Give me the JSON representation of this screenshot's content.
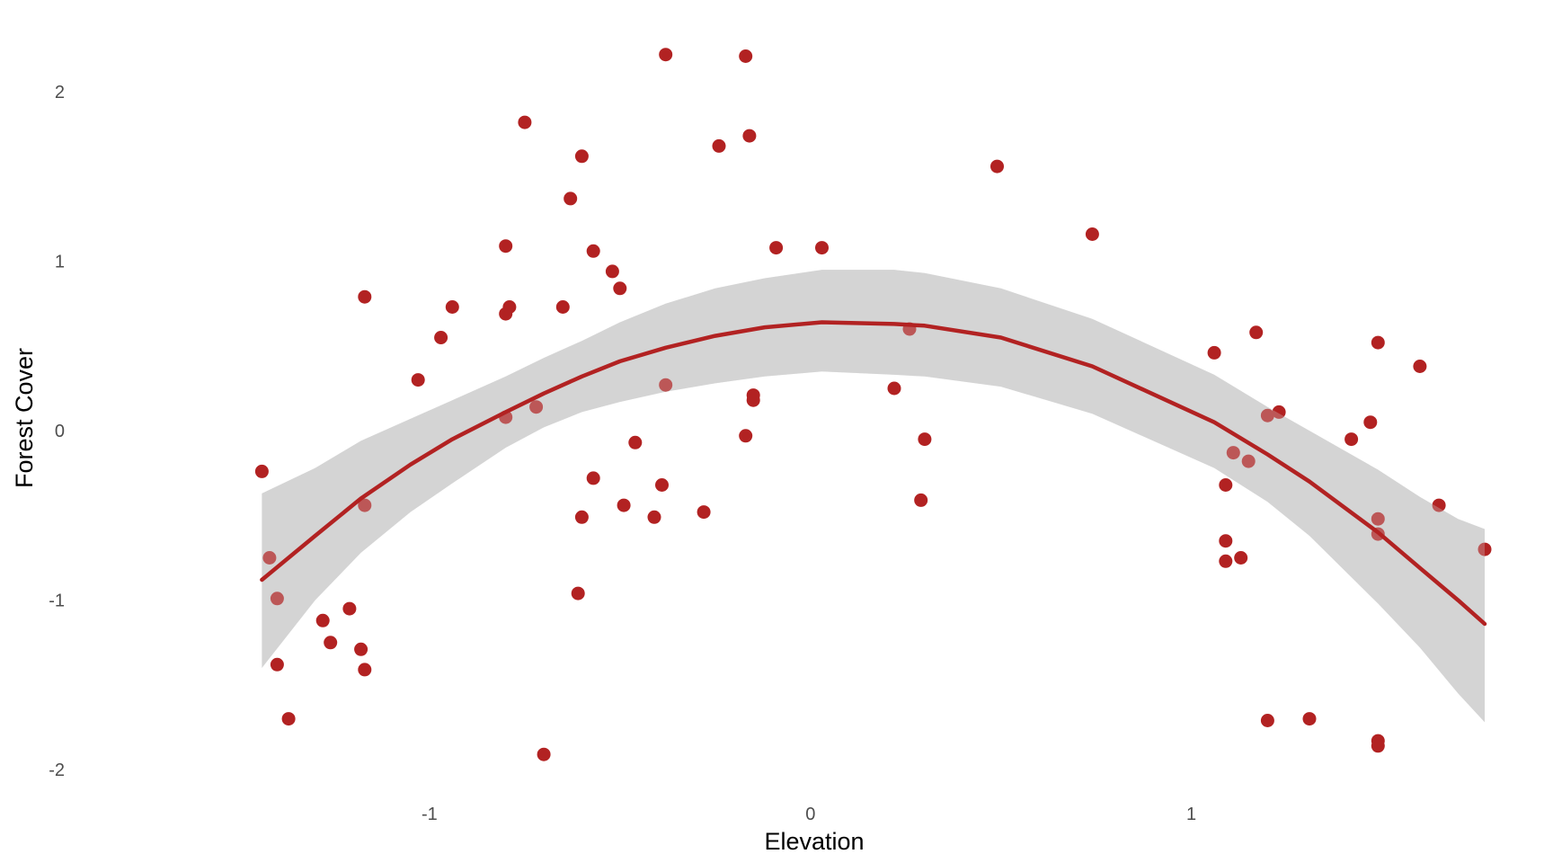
{
  "chart_data": {
    "type": "scatter",
    "title": "",
    "xlabel": "Elevation",
    "ylabel": "Forest Cover",
    "xlim": [
      -1.75,
      1.77
    ],
    "ylim": [
      -2.1,
      2.25
    ],
    "x_ticks": [
      -1,
      0,
      1
    ],
    "x_tick_labels": [
      "-1",
      "0",
      "1"
    ],
    "y_ticks": [
      -2,
      -1,
      0,
      1,
      2
    ],
    "y_tick_labels": [
      "-2",
      "-1",
      "0",
      "1",
      "2"
    ],
    "grid": false,
    "colors": {
      "points": "#b22222",
      "fit_line": "#b22222",
      "ribbon": "#d3d3d3",
      "text": "#4d4d4d"
    },
    "points": [
      {
        "x": -1.44,
        "y": -0.24
      },
      {
        "x": -1.42,
        "y": -0.75
      },
      {
        "x": -1.4,
        "y": -0.99
      },
      {
        "x": -1.4,
        "y": -1.38
      },
      {
        "x": -1.37,
        "y": -1.7
      },
      {
        "x": -1.28,
        "y": -1.12
      },
      {
        "x": -1.26,
        "y": -1.25
      },
      {
        "x": -1.21,
        "y": -1.05
      },
      {
        "x": -1.18,
        "y": -1.29
      },
      {
        "x": -1.17,
        "y": -1.41
      },
      {
        "x": -1.17,
        "y": -0.44
      },
      {
        "x": -1.17,
        "y": 0.79
      },
      {
        "x": -1.03,
        "y": 0.3
      },
      {
        "x": -0.97,
        "y": 0.55
      },
      {
        "x": -0.94,
        "y": 0.73
      },
      {
        "x": -0.8,
        "y": 1.09
      },
      {
        "x": -0.8,
        "y": 0.69
      },
      {
        "x": -0.79,
        "y": 0.73
      },
      {
        "x": -0.8,
        "y": 0.08
      },
      {
        "x": -0.75,
        "y": 1.82
      },
      {
        "x": -0.72,
        "y": 0.14
      },
      {
        "x": -0.7,
        "y": -1.91
      },
      {
        "x": -0.65,
        "y": 0.73
      },
      {
        "x": -0.63,
        "y": 1.37
      },
      {
        "x": -0.61,
        "y": -0.96
      },
      {
        "x": -0.6,
        "y": 1.62
      },
      {
        "x": -0.6,
        "y": -0.51
      },
      {
        "x": -0.57,
        "y": 1.06
      },
      {
        "x": -0.57,
        "y": -0.28
      },
      {
        "x": -0.52,
        "y": 0.94
      },
      {
        "x": -0.5,
        "y": 0.84
      },
      {
        "x": -0.49,
        "y": -0.44
      },
      {
        "x": -0.46,
        "y": -0.07
      },
      {
        "x": -0.41,
        "y": -0.51
      },
      {
        "x": -0.39,
        "y": -0.32
      },
      {
        "x": -0.38,
        "y": 2.22
      },
      {
        "x": -0.38,
        "y": 0.27
      },
      {
        "x": -0.28,
        "y": -0.48
      },
      {
        "x": -0.24,
        "y": 1.68
      },
      {
        "x": -0.17,
        "y": 2.21
      },
      {
        "x": -0.17,
        "y": -0.03
      },
      {
        "x": -0.16,
        "y": 1.74
      },
      {
        "x": -0.15,
        "y": 0.21
      },
      {
        "x": -0.15,
        "y": 0.18
      },
      {
        "x": -0.09,
        "y": 1.08
      },
      {
        "x": 0.03,
        "y": 1.08
      },
      {
        "x": 0.22,
        "y": 0.25
      },
      {
        "x": 0.26,
        "y": 0.6
      },
      {
        "x": 0.29,
        "y": -0.41
      },
      {
        "x": 0.3,
        "y": -0.05
      },
      {
        "x": 0.49,
        "y": 1.56
      },
      {
        "x": 0.74,
        "y": 1.16
      },
      {
        "x": 1.06,
        "y": 0.46
      },
      {
        "x": 1.09,
        "y": -0.32
      },
      {
        "x": 1.09,
        "y": -0.65
      },
      {
        "x": 1.09,
        "y": -0.77
      },
      {
        "x": 1.11,
        "y": -0.13
      },
      {
        "x": 1.13,
        "y": -0.75
      },
      {
        "x": 1.15,
        "y": -0.18
      },
      {
        "x": 1.17,
        "y": 0.58
      },
      {
        "x": 1.2,
        "y": 0.09
      },
      {
        "x": 1.2,
        "y": -1.71
      },
      {
        "x": 1.23,
        "y": 0.11
      },
      {
        "x": 1.31,
        "y": -1.7
      },
      {
        "x": 1.42,
        "y": -0.05
      },
      {
        "x": 1.47,
        "y": 0.05
      },
      {
        "x": 1.49,
        "y": 0.52
      },
      {
        "x": 1.49,
        "y": -0.52
      },
      {
        "x": 1.49,
        "y": -0.61
      },
      {
        "x": 1.49,
        "y": -1.83
      },
      {
        "x": 1.49,
        "y": -1.86
      },
      {
        "x": 1.6,
        "y": 0.38
      },
      {
        "x": 1.65,
        "y": -0.44
      },
      {
        "x": 1.77,
        "y": -0.7
      }
    ],
    "fit_line": [
      {
        "x": -1.44,
        "y": -0.88
      },
      {
        "x": -1.3,
        "y": -0.62
      },
      {
        "x": -1.18,
        "y": -0.4
      },
      {
        "x": -1.05,
        "y": -0.2
      },
      {
        "x": -0.94,
        "y": -0.05
      },
      {
        "x": -0.8,
        "y": 0.11
      },
      {
        "x": -0.7,
        "y": 0.22
      },
      {
        "x": -0.6,
        "y": 0.32
      },
      {
        "x": -0.5,
        "y": 0.41
      },
      {
        "x": -0.38,
        "y": 0.49
      },
      {
        "x": -0.25,
        "y": 0.56
      },
      {
        "x": -0.12,
        "y": 0.61
      },
      {
        "x": 0.03,
        "y": 0.64
      },
      {
        "x": 0.22,
        "y": 0.63
      },
      {
        "x": 0.3,
        "y": 0.62
      },
      {
        "x": 0.5,
        "y": 0.55
      },
      {
        "x": 0.74,
        "y": 0.38
      },
      {
        "x": 1.06,
        "y": 0.05
      },
      {
        "x": 1.2,
        "y": -0.14
      },
      {
        "x": 1.31,
        "y": -0.3
      },
      {
        "x": 1.49,
        "y": -0.6
      },
      {
        "x": 1.6,
        "y": -0.81
      },
      {
        "x": 1.7,
        "y": -1.0
      },
      {
        "x": 1.77,
        "y": -1.14
      }
    ],
    "ribbon": [
      {
        "x": -1.44,
        "lo": -1.4,
        "hi": -0.37
      },
      {
        "x": -1.3,
        "lo": -1.0,
        "hi": -0.22
      },
      {
        "x": -1.18,
        "lo": -0.72,
        "hi": -0.06
      },
      {
        "x": -1.05,
        "lo": -0.48,
        "hi": 0.07
      },
      {
        "x": -0.94,
        "lo": -0.31,
        "hi": 0.18
      },
      {
        "x": -0.8,
        "lo": -0.1,
        "hi": 0.32
      },
      {
        "x": -0.7,
        "lo": 0.02,
        "hi": 0.43
      },
      {
        "x": -0.6,
        "lo": 0.11,
        "hi": 0.53
      },
      {
        "x": -0.5,
        "lo": 0.17,
        "hi": 0.64
      },
      {
        "x": -0.38,
        "lo": 0.23,
        "hi": 0.75
      },
      {
        "x": -0.25,
        "lo": 0.28,
        "hi": 0.84
      },
      {
        "x": -0.12,
        "lo": 0.32,
        "hi": 0.9
      },
      {
        "x": 0.03,
        "lo": 0.35,
        "hi": 0.95
      },
      {
        "x": 0.22,
        "lo": 0.33,
        "hi": 0.95
      },
      {
        "x": 0.3,
        "lo": 0.32,
        "hi": 0.93
      },
      {
        "x": 0.5,
        "lo": 0.26,
        "hi": 0.84
      },
      {
        "x": 0.74,
        "lo": 0.1,
        "hi": 0.66
      },
      {
        "x": 1.06,
        "lo": -0.22,
        "hi": 0.33
      },
      {
        "x": 1.2,
        "lo": -0.42,
        "hi": 0.14
      },
      {
        "x": 1.31,
        "lo": -0.62,
        "hi": 0.0
      },
      {
        "x": 1.49,
        "lo": -1.02,
        "hi": -0.23
      },
      {
        "x": 1.6,
        "lo": -1.28,
        "hi": -0.39
      },
      {
        "x": 1.7,
        "lo": -1.55,
        "hi": -0.52
      },
      {
        "x": 1.77,
        "lo": -1.72,
        "hi": -0.58
      }
    ]
  }
}
